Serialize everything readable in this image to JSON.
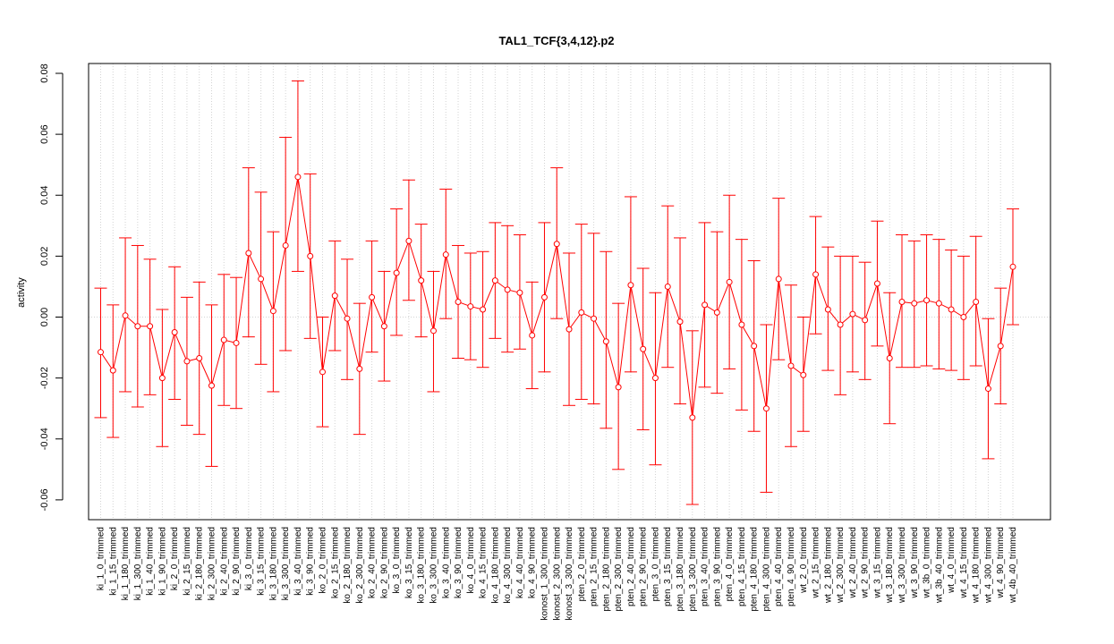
{
  "chart_data": {
    "type": "line",
    "title": "TAL1_TCF{3,4,12}.p2",
    "xlabel": "",
    "ylabel": "activity",
    "ylim": [
      -0.067,
      0.082
    ],
    "yticks": [
      -0.06,
      -0.04,
      -0.02,
      0.0,
      0.02,
      0.04,
      0.06,
      0.08
    ],
    "ytick_labels": [
      "-0.06",
      "-0.04",
      "-0.02",
      "0.00",
      "0.02",
      "0.04",
      "0.06",
      "0.08"
    ],
    "grid": true,
    "reference_line": 0,
    "series_color": "#ff0000",
    "grid_color": "#d3d3d3",
    "categories": [
      "ki_1_0_trimmed",
      "ki_1_15_trimmed",
      "ki_1_180_trimmed",
      "ki_1_300_trimmed",
      "ki_1_40_trimmed",
      "ki_1_90_trimmed",
      "ki_2_0_trimmed",
      "ki_2_15_trimmed",
      "ki_2_180_trimmed",
      "ki_2_300_trimmed",
      "ki_2_40_trimmed",
      "ki_2_90_trimmed",
      "ki_3_0_trimmed",
      "ki_3_15_trimmed",
      "ki_3_180_trimmed",
      "ki_3_300_trimmed",
      "ki_3_40_trimmed",
      "ki_3_90_trimmed",
      "ko_2_0_trimmed",
      "ko_2_15_trimmed",
      "ko_2_180_trimmed",
      "ko_2_300_trimmed",
      "ko_2_40_trimmed",
      "ko_2_90_trimmed",
      "ko_3_0_trimmed",
      "ko_3_15_trimmed",
      "ko_3_180_trimmed",
      "ko_3_300_trimmed",
      "ko_3_40_trimmed",
      "ko_3_90_trimmed",
      "ko_4_0_trimmed",
      "ko_4_15_trimmed",
      "ko_4_180_trimmed",
      "ko_4_300_trimmed",
      "ko_4_40_trimmed",
      "ko_4_90_trimmed",
      "konost_1_300_trimmed",
      "konost_2_300_trimmed",
      "konost_3_300_trimmed",
      "pten_2_0_trimmed",
      "pten_2_15_trimmed",
      "pten_2_180_trimmed",
      "pten_2_300_trimmed",
      "pten_2_40_trimmed",
      "pten_2_90_trimmed",
      "pten_3_0_trimmed",
      "pten_3_15_trimmed",
      "pten_3_180_trimmed",
      "pten_3_300_trimmed",
      "pten_3_40_trimmed",
      "pten_3_90_trimmed",
      "pten_4_0_trimmed",
      "pten_4_15_trimmed",
      "pten_4_180_trimmed",
      "pten_4_300_trimmed",
      "pten_4_40_trimmed",
      "pten_4_90_trimmed",
      "wt_2_0_trimmed",
      "wt_2_15_trimmed",
      "wt_2_180_trimmed",
      "wt_2_300_trimmed",
      "wt_2_40_trimmed",
      "wt_2_90_trimmed",
      "wt_3_15_trimmed",
      "wt_3_180_trimmed",
      "wt_3_300_trimmed",
      "wt_3_90_trimmed",
      "wt_3b_0_trimmed",
      "wt_3b_40_trimmed",
      "wt_4_0_trimmed",
      "wt_4_15_trimmed",
      "wt_4_180_trimmed",
      "wt_4_300_trimmed",
      "wt_4_90_trimmed",
      "wt_4b_40_trimmed"
    ],
    "values": [
      -0.0115,
      -0.0175,
      0.0005,
      -0.003,
      -0.003,
      -0.02,
      -0.005,
      -0.0145,
      -0.0135,
      -0.0225,
      -0.0075,
      -0.0085,
      0.021,
      0.0125,
      0.002,
      0.0235,
      0.046,
      0.02,
      -0.018,
      0.007,
      -0.0005,
      -0.017,
      0.0065,
      -0.003,
      0.0145,
      0.025,
      0.012,
      -0.0045,
      0.0205,
      0.005,
      0.0035,
      0.0025,
      0.012,
      0.009,
      0.008,
      -0.006,
      0.0065,
      0.024,
      -0.004,
      0.0015,
      -0.0005,
      -0.008,
      -0.023,
      0.0105,
      -0.0105,
      -0.02,
      0.01,
      -0.0015,
      -0.033,
      0.004,
      0.0015,
      0.0115,
      -0.0025,
      -0.0095,
      -0.03,
      0.0125,
      -0.016,
      -0.019,
      0.014,
      0.0025,
      -0.0025,
      0.001,
      -0.001,
      0.011,
      -0.0135,
      0.005,
      0.0045,
      0.0055,
      0.0045,
      0.0025,
      0.0,
      0.005,
      -0.0235,
      -0.0095,
      0.0165
    ],
    "upper": [
      0.0095,
      0.004,
      0.026,
      0.0235,
      0.019,
      0.0025,
      0.0165,
      0.0065,
      0.0115,
      0.004,
      0.014,
      0.013,
      0.049,
      0.041,
      0.028,
      0.059,
      0.0775,
      0.047,
      0.0,
      0.025,
      0.019,
      0.0045,
      0.025,
      0.015,
      0.0355,
      0.045,
      0.0305,
      0.015,
      0.042,
      0.0235,
      0.021,
      0.0215,
      0.031,
      0.03,
      0.027,
      0.0115,
      0.031,
      0.049,
      0.021,
      0.0305,
      0.0275,
      0.0215,
      0.0045,
      0.0395,
      0.016,
      0.008,
      0.0365,
      0.026,
      -0.0045,
      0.031,
      0.028,
      0.04,
      0.0255,
      0.0185,
      -0.0025,
      0.039,
      0.0105,
      0.0,
      0.033,
      0.023,
      0.02,
      0.02,
      0.018,
      0.0315,
      0.008,
      0.027,
      0.025,
      0.027,
      0.0255,
      0.022,
      0.02,
      0.0265,
      -0.0005,
      0.0095,
      0.0355
    ],
    "lower": [
      -0.033,
      -0.0395,
      -0.0245,
      -0.0295,
      -0.0255,
      -0.0425,
      -0.027,
      -0.0355,
      -0.0385,
      -0.049,
      -0.029,
      -0.03,
      -0.0065,
      -0.0155,
      -0.0245,
      -0.011,
      0.015,
      -0.007,
      -0.036,
      -0.011,
      -0.0205,
      -0.0385,
      -0.0115,
      -0.021,
      -0.006,
      0.0055,
      -0.0065,
      -0.0245,
      -0.0005,
      -0.0135,
      -0.014,
      -0.0165,
      -0.007,
      -0.0115,
      -0.0105,
      -0.0235,
      -0.018,
      -0.0005,
      -0.029,
      -0.027,
      -0.0285,
      -0.0365,
      -0.05,
      -0.018,
      -0.037,
      -0.0485,
      -0.0165,
      -0.0285,
      -0.0615,
      -0.023,
      -0.025,
      -0.017,
      -0.0305,
      -0.0375,
      -0.0575,
      -0.014,
      -0.0425,
      -0.0375,
      -0.0055,
      -0.0175,
      -0.0255,
      -0.018,
      -0.0205,
      -0.0095,
      -0.035,
      -0.0165,
      -0.0165,
      -0.016,
      -0.017,
      -0.0175,
      -0.0205,
      -0.016,
      -0.0465,
      -0.0285,
      -0.0025
    ]
  }
}
